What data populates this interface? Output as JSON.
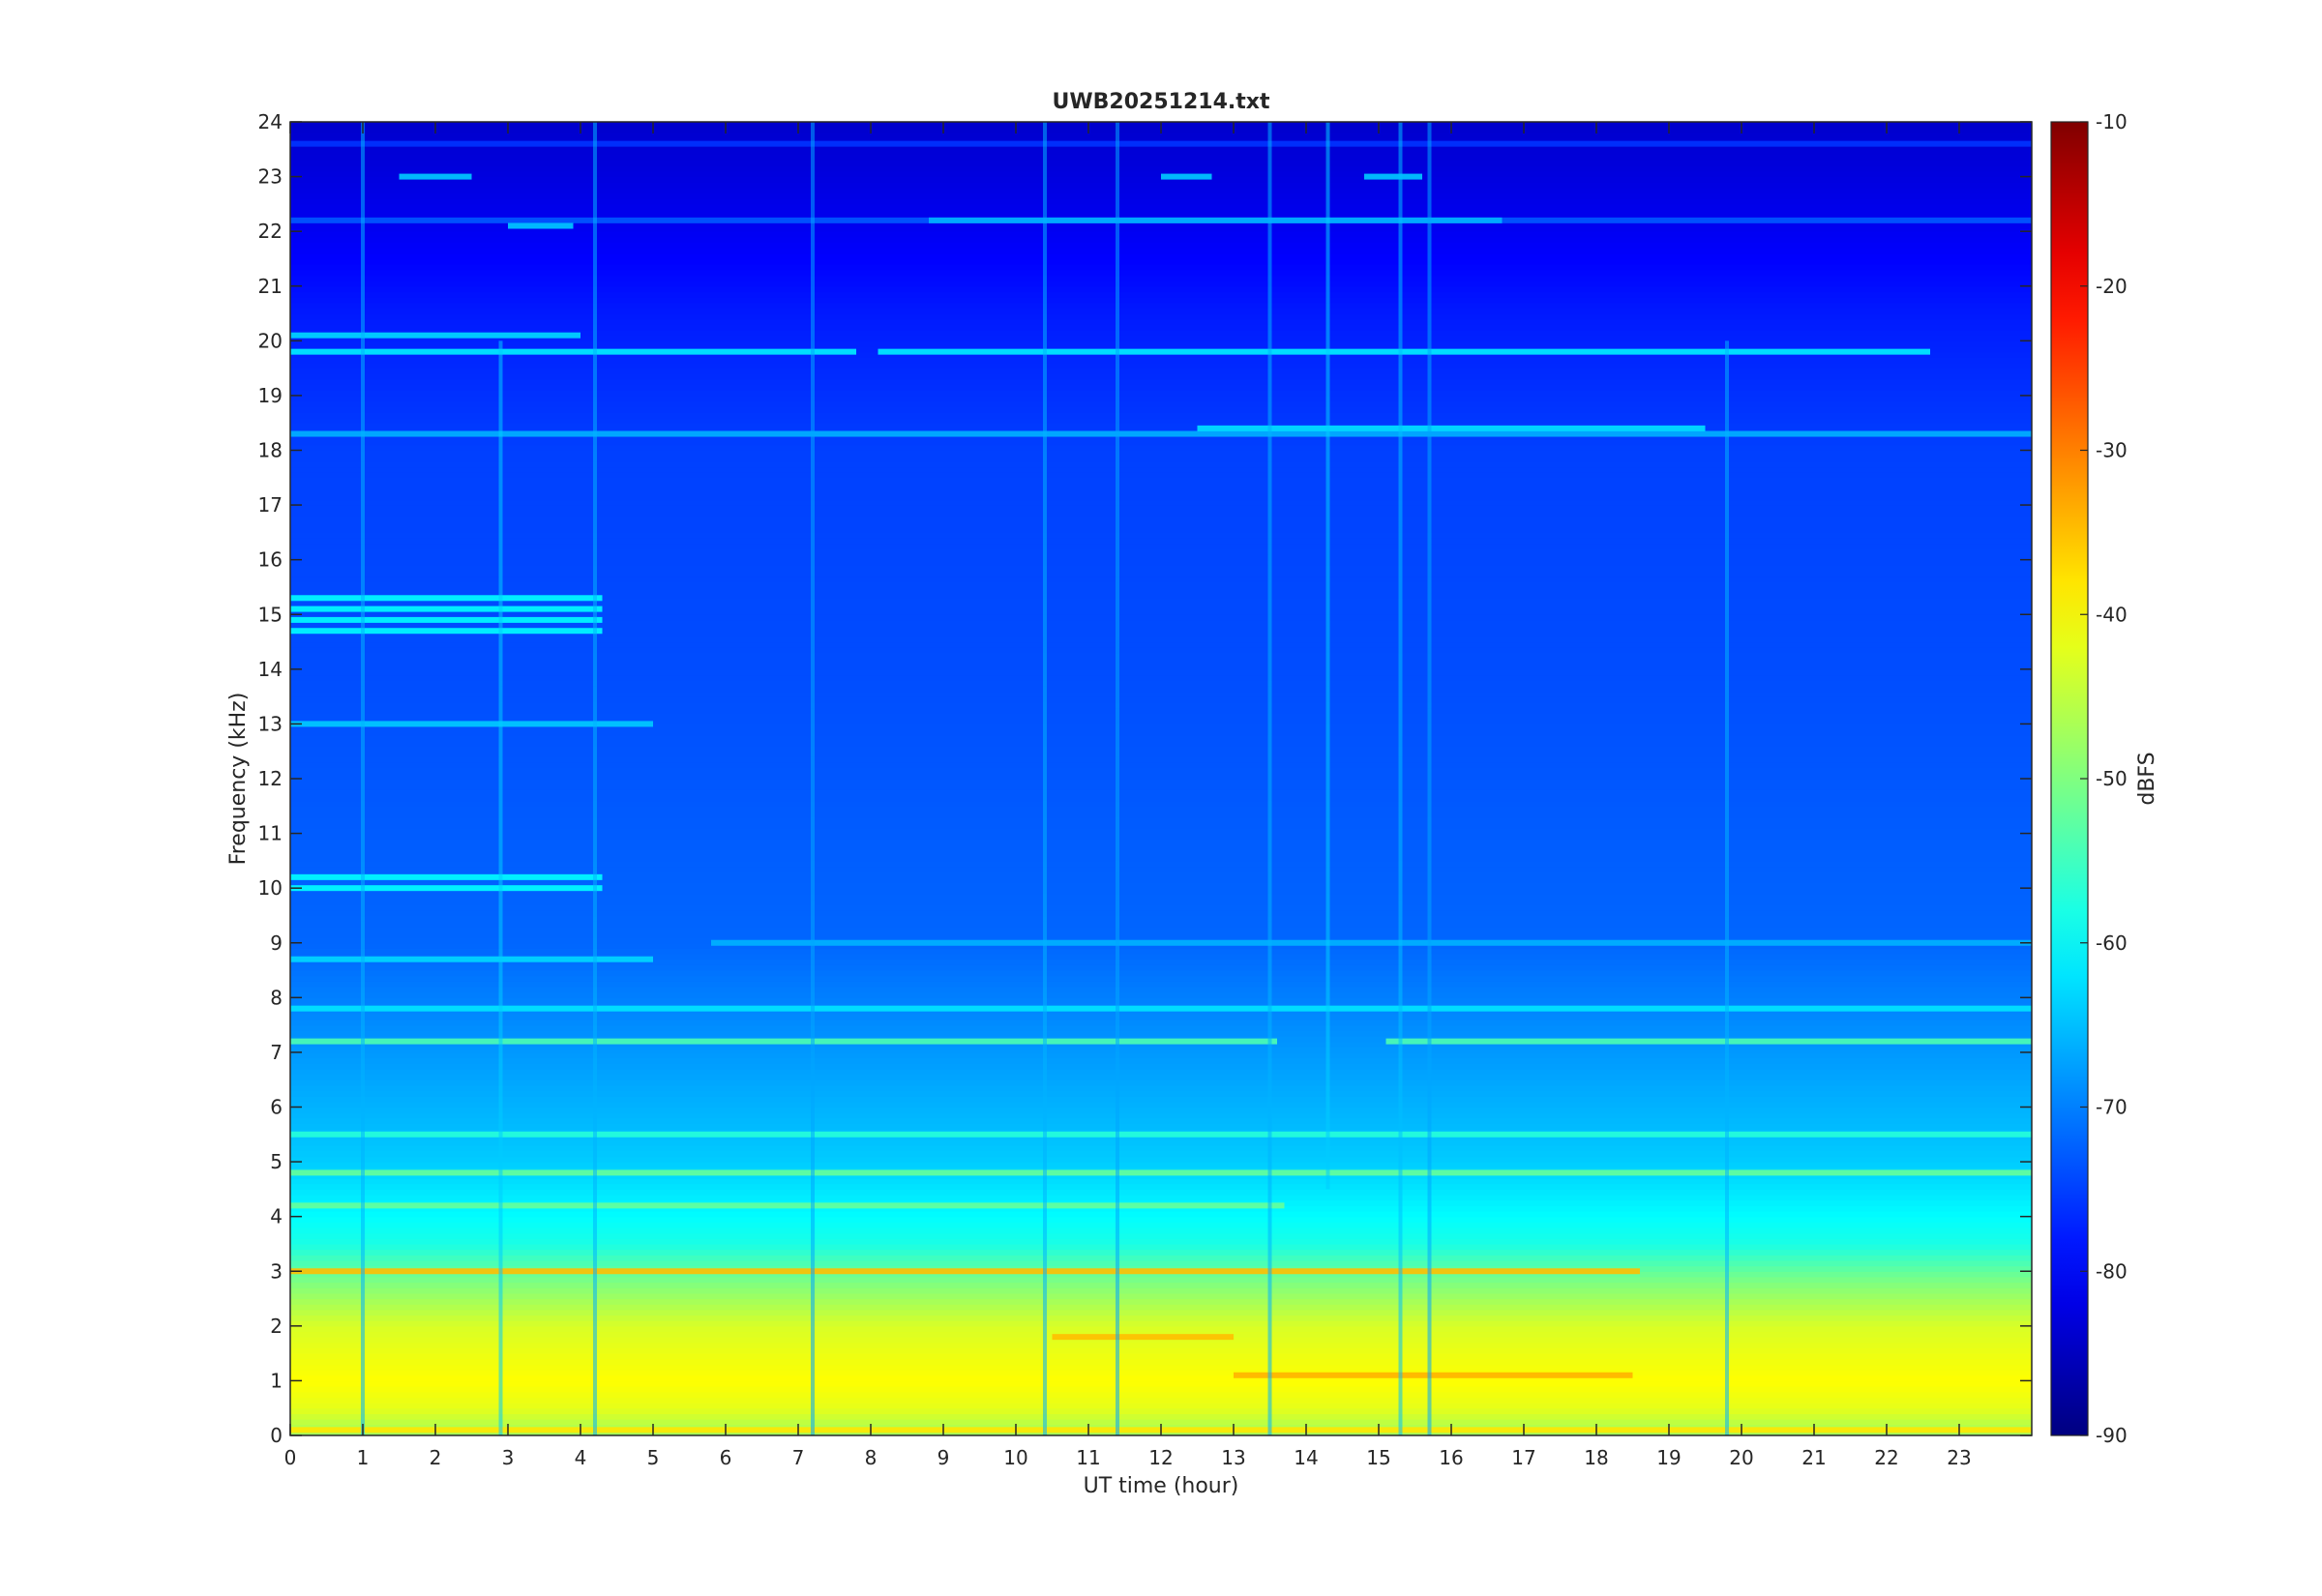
{
  "chart_data": {
    "type": "heatmap",
    "title": "UWB20251214.txt",
    "xlabel": "UT time (hour)",
    "ylabel": "Frequency (kHz)",
    "xlim": [
      0,
      24
    ],
    "ylim": [
      0,
      24
    ],
    "x_ticks": [
      "0",
      "1",
      "2",
      "3",
      "4",
      "5",
      "6",
      "7",
      "8",
      "9",
      "10",
      "11",
      "12",
      "13",
      "14",
      "15",
      "16",
      "17",
      "18",
      "19",
      "20",
      "21",
      "22",
      "23"
    ],
    "y_ticks": [
      "0",
      "1",
      "2",
      "3",
      "4",
      "5",
      "6",
      "7",
      "8",
      "9",
      "10",
      "11",
      "12",
      "13",
      "14",
      "15",
      "16",
      "17",
      "18",
      "19",
      "20",
      "21",
      "22",
      "23",
      "24"
    ],
    "colorbar": {
      "label": "dBFS",
      "colormap": "jet",
      "clim": [
        -90,
        -10
      ],
      "ticks": [
        "-10",
        "-20",
        "-30",
        "-40",
        "-50",
        "-60",
        "-70",
        "-80",
        "-90"
      ]
    },
    "background_by_frequency": [
      {
        "freq_khz": 0.0,
        "dbfs": -48
      },
      {
        "freq_khz": 0.5,
        "dbfs": -42
      },
      {
        "freq_khz": 1.0,
        "dbfs": -40
      },
      {
        "freq_khz": 2.0,
        "dbfs": -43
      },
      {
        "freq_khz": 2.8,
        "dbfs": -50
      },
      {
        "freq_khz": 3.5,
        "dbfs": -58
      },
      {
        "freq_khz": 5.0,
        "dbfs": -64
      },
      {
        "freq_khz": 7.0,
        "dbfs": -68
      },
      {
        "freq_khz": 9.0,
        "dbfs": -72
      },
      {
        "freq_khz": 14.0,
        "dbfs": -74
      },
      {
        "freq_khz": 18.0,
        "dbfs": -75
      },
      {
        "freq_khz": 20.5,
        "dbfs": -78
      },
      {
        "freq_khz": 22.0,
        "dbfs": -81
      },
      {
        "freq_khz": 24.0,
        "dbfs": -84
      }
    ],
    "lines": [
      {
        "freq_khz": 0.1,
        "t_start": 0,
        "t_end": 24,
        "dbfs": -38
      },
      {
        "freq_khz": 1.1,
        "t_start": 13,
        "t_end": 18.5,
        "dbfs": -34
      },
      {
        "freq_khz": 1.8,
        "t_start": 10.5,
        "t_end": 13,
        "dbfs": -35
      },
      {
        "freq_khz": 3.0,
        "t_start": 0,
        "t_end": 18.6,
        "dbfs": -35
      },
      {
        "freq_khz": 4.2,
        "t_start": 0,
        "t_end": 13.7,
        "dbfs": -52
      },
      {
        "freq_khz": 4.8,
        "t_start": 0,
        "t_end": 24,
        "dbfs": -52
      },
      {
        "freq_khz": 5.5,
        "t_start": 0,
        "t_end": 24,
        "dbfs": -57
      },
      {
        "freq_khz": 7.2,
        "t_start": 0,
        "t_end": 13.6,
        "dbfs": -54
      },
      {
        "freq_khz": 7.2,
        "t_start": 15.1,
        "t_end": 24,
        "dbfs": -54
      },
      {
        "freq_khz": 7.8,
        "t_start": 0,
        "t_end": 24,
        "dbfs": -62
      },
      {
        "freq_khz": 8.7,
        "t_start": 0,
        "t_end": 5,
        "dbfs": -63
      },
      {
        "freq_khz": 9.0,
        "t_start": 5.8,
        "t_end": 24,
        "dbfs": -66
      },
      {
        "freq_khz": 10.0,
        "t_start": 0,
        "t_end": 4.3,
        "dbfs": -60
      },
      {
        "freq_khz": 10.2,
        "t_start": 0,
        "t_end": 4.3,
        "dbfs": -60
      },
      {
        "freq_khz": 13.0,
        "t_start": 0,
        "t_end": 5,
        "dbfs": -64
      },
      {
        "freq_khz": 14.7,
        "t_start": 0,
        "t_end": 4.3,
        "dbfs": -60
      },
      {
        "freq_khz": 14.9,
        "t_start": 0,
        "t_end": 4.3,
        "dbfs": -60
      },
      {
        "freq_khz": 15.1,
        "t_start": 0,
        "t_end": 4.3,
        "dbfs": -60
      },
      {
        "freq_khz": 15.3,
        "t_start": 0,
        "t_end": 4.3,
        "dbfs": -60
      },
      {
        "freq_khz": 18.3,
        "t_start": 0,
        "t_end": 24,
        "dbfs": -66
      },
      {
        "freq_khz": 18.4,
        "t_start": 12.5,
        "t_end": 19.5,
        "dbfs": -62
      },
      {
        "freq_khz": 19.8,
        "t_start": 0,
        "t_end": 7.8,
        "dbfs": -61
      },
      {
        "freq_khz": 19.8,
        "t_start": 8.1,
        "t_end": 22.6,
        "dbfs": -61
      },
      {
        "freq_khz": 20.1,
        "t_start": 0,
        "t_end": 4.0,
        "dbfs": -63
      },
      {
        "freq_khz": 22.2,
        "t_start": 0,
        "t_end": 24,
        "dbfs": -73
      },
      {
        "freq_khz": 22.2,
        "t_start": 8.8,
        "t_end": 16.7,
        "dbfs": -66
      },
      {
        "freq_khz": 22.1,
        "t_start": 3.0,
        "t_end": 3.9,
        "dbfs": -64
      },
      {
        "freq_khz": 23.0,
        "t_start": 1.5,
        "t_end": 2.5,
        "dbfs": -64
      },
      {
        "freq_khz": 23.0,
        "t_start": 12.0,
        "t_end": 12.7,
        "dbfs": -64
      },
      {
        "freq_khz": 23.0,
        "t_start": 14.8,
        "t_end": 15.6,
        "dbfs": -64
      },
      {
        "freq_khz": 23.6,
        "t_start": 0,
        "t_end": 24,
        "dbfs": -76
      }
    ],
    "vertical_streaks": [
      {
        "t": 1.0,
        "f_start": 0,
        "f_end": 24,
        "dbfs": -66
      },
      {
        "t": 2.9,
        "f_start": 0,
        "f_end": 20,
        "dbfs": -64
      },
      {
        "t": 4.2,
        "f_start": 0,
        "f_end": 24,
        "dbfs": -66
      },
      {
        "t": 7.2,
        "f_start": 0,
        "f_end": 24,
        "dbfs": -67
      },
      {
        "t": 10.4,
        "f_start": 0,
        "f_end": 24,
        "dbfs": -66
      },
      {
        "t": 11.4,
        "f_start": 0,
        "f_end": 24,
        "dbfs": -67
      },
      {
        "t": 13.5,
        "f_start": 0,
        "f_end": 24,
        "dbfs": -66
      },
      {
        "t": 14.3,
        "f_start": 4.5,
        "f_end": 24,
        "dbfs": -64
      },
      {
        "t": 15.3,
        "f_start": 0,
        "f_end": 24,
        "dbfs": -65
      },
      {
        "t": 15.7,
        "f_start": 0,
        "f_end": 24,
        "dbfs": -67
      },
      {
        "t": 19.8,
        "f_start": 0,
        "f_end": 20,
        "dbfs": -66
      }
    ]
  }
}
